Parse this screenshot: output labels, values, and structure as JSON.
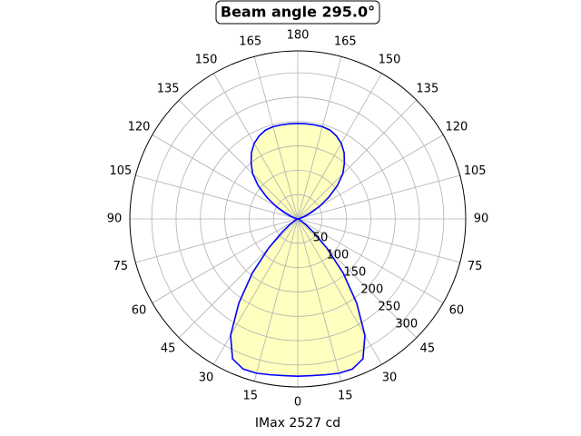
{
  "chart_data": {
    "type": "polar",
    "title": "Beam angle 295.0°",
    "xlabel": "IMax 2527 cd",
    "x": [
      0,
      5,
      10,
      15,
      20,
      25,
      30,
      35,
      40,
      45,
      50,
      55,
      60,
      65,
      70,
      75,
      80,
      85,
      90,
      95,
      100,
      105,
      110,
      115,
      120,
      125,
      130,
      135,
      140,
      145,
      150,
      155,
      160,
      165,
      170,
      175,
      180,
      185,
      190,
      195,
      200,
      205,
      210,
      215,
      220,
      225,
      230,
      235,
      240,
      245,
      250,
      255,
      260,
      265,
      270,
      275,
      280,
      285,
      290,
      295,
      300,
      305,
      310,
      315,
      320,
      325,
      330,
      335,
      340,
      345,
      350,
      355
    ],
    "values": [
      323,
      323,
      325,
      328,
      328,
      317,
      276,
      211,
      145,
      84,
      41,
      19,
      7,
      4,
      2,
      0,
      0,
      0,
      0,
      0,
      2,
      6,
      15,
      30,
      52,
      78,
      106,
      131,
      149,
      166,
      179,
      188,
      194,
      196,
      196,
      196,
      196,
      196,
      196,
      196,
      194,
      188,
      179,
      166,
      149,
      131,
      106,
      78,
      52,
      30,
      15,
      6,
      2,
      0,
      0,
      0,
      0,
      0,
      2,
      4,
      7,
      19,
      41,
      84,
      145,
      211,
      276,
      317,
      328,
      328,
      325,
      323
    ],
    "color": "#0000ff",
    "fill": "#ffffbf",
    "rlim": [
      0,
      345
    ],
    "rticks": [
      50,
      100,
      150,
      200,
      250,
      300
    ],
    "rlabel_angle": 315,
    "thetaticks": [
      0,
      15,
      30,
      45,
      60,
      75,
      90,
      105,
      120,
      135,
      150,
      165,
      180,
      {
        "value": 195,
        "label": "165"
      },
      {
        "value": 210,
        "label": "150"
      },
      {
        "value": 225,
        "label": "135"
      },
      {
        "value": 240,
        "label": "120"
      },
      {
        "value": 255,
        "label": "105"
      },
      {
        "value": 270,
        "label": "90"
      },
      {
        "value": 285,
        "label": "75"
      },
      {
        "value": 300,
        "label": "60"
      },
      {
        "value": 315,
        "label": "45"
      },
      {
        "value": 330,
        "label": "30"
      },
      {
        "value": 345,
        "label": "15"
      }
    ],
    "grid": true
  }
}
